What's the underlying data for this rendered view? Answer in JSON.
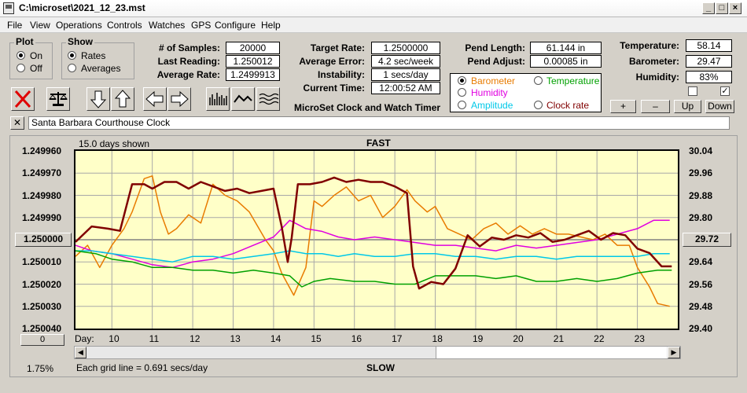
{
  "window": {
    "title": "C:\\microset\\2021_12_23.mst"
  },
  "menu": [
    "File",
    "View",
    "Operations",
    "Controls",
    "Watches",
    "GPS",
    "Configure",
    "Help"
  ],
  "plot_group": {
    "label": "Plot",
    "options": [
      "On",
      "Off"
    ],
    "selected": "On"
  },
  "show_group": {
    "label": "Show",
    "options": [
      "Rates",
      "Averages"
    ],
    "selected": "Rates"
  },
  "stats_left": [
    {
      "label": "# of Samples:",
      "value": "20000"
    },
    {
      "label": "Last Reading:",
      "value": "1.250012"
    },
    {
      "label": "Average Rate:",
      "value": "1.2499913"
    }
  ],
  "stats_mid": [
    {
      "label": "Target Rate:",
      "value": "1.2500000"
    },
    {
      "label": "Average Error:",
      "value": "4.2 sec/week"
    },
    {
      "label": "Instability:",
      "value": "1 secs/day"
    },
    {
      "label": "Current Time:",
      "value": "12:00:52 AM"
    }
  ],
  "app_caption": "MicroSet Clock and Watch Timer",
  "pend": [
    {
      "label": "Pend Length:",
      "value": "61.144 in"
    },
    {
      "label": "Pend Adjust:",
      "value": "0.00085 in"
    }
  ],
  "sensor_options": [
    {
      "label": "Barometer",
      "color": "#e87b00",
      "selected": true
    },
    {
      "label": "Temperature",
      "color": "#00a000",
      "selected": false
    },
    {
      "label": "Humidity",
      "color": "#e000e0",
      "selected": false
    },
    {
      "label": "Amplitude",
      "color": "#00c8e8",
      "selected": false
    },
    {
      "label": "Clock rate",
      "color": "#800000",
      "selected": false
    }
  ],
  "env": [
    {
      "label": "Temperature:",
      "value": "58.14"
    },
    {
      "label": "Barometer:",
      "value": "29.47"
    },
    {
      "label": "Humidity:",
      "value": "83%"
    }
  ],
  "env_checkboxes": [
    false,
    true
  ],
  "scale_buttons": [
    "+",
    "–",
    "Up",
    "Down"
  ],
  "watch_name": "Santa Barbara Courthouse Clock",
  "chart_header": {
    "days_shown": "15.0 days shown",
    "fast": "FAST",
    "slow": "SLOW",
    "grid_note": "Each grid line = 0.691 secs/day",
    "day_label": "Day:",
    "percent": "1.75%",
    "left_spin": "1.250000",
    "right_spin": "29.72",
    "zero_button": "0"
  },
  "chart_data": {
    "type": "line",
    "left_axis": {
      "ticks": [
        "1.249960",
        "1.249970",
        "1.249980",
        "1.249990",
        "1.250000",
        "1.250010",
        "1.250020",
        "1.250030",
        "1.250040"
      ],
      "range": [
        1.24996,
        1.25004
      ],
      "inverted": true
    },
    "right_axis": {
      "ticks": [
        "30.04",
        "29.96",
        "29.88",
        "29.80",
        "29.72",
        "29.64",
        "29.56",
        "29.48",
        "29.40"
      ],
      "range": [
        29.4,
        30.04
      ]
    },
    "x_ticks": [
      "10",
      "11",
      "12",
      "13",
      "14",
      "15",
      "16",
      "17",
      "18",
      "19",
      "20",
      "21",
      "22",
      "23"
    ],
    "x_range": [
      9.1,
      24.0
    ],
    "series": [
      {
        "name": "Clock rate",
        "color": "#800000",
        "axis": "left",
        "x": [
          9.1,
          9.5,
          9.9,
          10.2,
          10.5,
          10.8,
          11.0,
          11.3,
          11.6,
          11.9,
          12.2,
          12.5,
          12.8,
          13.1,
          13.4,
          13.7,
          14.0,
          14.2,
          14.35,
          14.45,
          14.6,
          14.9,
          15.2,
          15.5,
          15.8,
          16.1,
          16.4,
          16.7,
          17.0,
          17.3,
          17.45,
          17.6,
          17.9,
          18.2,
          18.5,
          18.8,
          19.1,
          19.4,
          19.7,
          20.0,
          20.3,
          20.6,
          20.9,
          21.2,
          21.5,
          21.8,
          22.1,
          22.4,
          22.7,
          23.0,
          23.3,
          23.6,
          23.85
        ],
        "y": [
          1.250001,
          1.249994,
          1.249995,
          1.249996,
          1.249975,
          1.249975,
          1.249977,
          1.249974,
          1.249974,
          1.249977,
          1.249974,
          1.249976,
          1.249978,
          1.249977,
          1.249979,
          1.249978,
          1.249977,
          1.249994,
          1.25001,
          1.249999,
          1.249975,
          1.249975,
          1.249974,
          1.249972,
          1.249974,
          1.249973,
          1.249974,
          1.249974,
          1.249976,
          1.249979,
          1.250012,
          1.250022,
          1.250019,
          1.25002,
          1.250013,
          1.249998,
          1.250003,
          1.249999,
          1.25,
          1.249998,
          1.249999,
          1.249997,
          1.250001,
          1.25,
          1.249998,
          1.249996,
          1.25,
          1.249997,
          1.249998,
          1.250004,
          1.250006,
          1.250012,
          1.250012
        ]
      },
      {
        "name": "Barometer",
        "color": "#e87b00",
        "axis": "right",
        "x": [
          9.1,
          9.4,
          9.7,
          10.0,
          10.3,
          10.5,
          10.8,
          11.0,
          11.2,
          11.4,
          11.6,
          11.9,
          12.2,
          12.5,
          12.8,
          13.1,
          13.4,
          13.6,
          13.8,
          14.0,
          14.2,
          14.5,
          14.8,
          15.0,
          15.2,
          15.5,
          15.8,
          16.1,
          16.4,
          16.7,
          17.0,
          17.3,
          17.5,
          17.8,
          18.0,
          18.3,
          18.6,
          18.9,
          19.2,
          19.5,
          19.8,
          20.1,
          20.4,
          20.7,
          21.0,
          21.3,
          21.6,
          21.9,
          22.2,
          22.5,
          22.8,
          23.0,
          23.3,
          23.5,
          23.8
        ],
        "y": [
          29.66,
          29.7,
          29.62,
          29.7,
          29.76,
          29.82,
          29.94,
          29.95,
          29.82,
          29.74,
          29.76,
          29.81,
          29.78,
          29.92,
          29.88,
          29.86,
          29.82,
          29.77,
          29.72,
          29.68,
          29.6,
          29.52,
          29.62,
          29.86,
          29.84,
          29.88,
          29.91,
          29.86,
          29.88,
          29.8,
          29.84,
          29.9,
          29.86,
          29.82,
          29.84,
          29.76,
          29.74,
          29.72,
          29.76,
          29.78,
          29.74,
          29.77,
          29.74,
          29.76,
          29.74,
          29.74,
          29.73,
          29.72,
          29.74,
          29.7,
          29.7,
          29.62,
          29.55,
          29.49,
          29.48
        ]
      },
      {
        "name": "Humidity",
        "color": "#e000e0",
        "axis": "right",
        "x": [
          9.1,
          9.5,
          10.0,
          10.5,
          11.0,
          11.5,
          12.0,
          12.5,
          13.0,
          13.5,
          14.0,
          14.4,
          14.8,
          15.2,
          15.6,
          16.0,
          16.5,
          17.0,
          17.5,
          18.0,
          18.5,
          19.0,
          19.5,
          20.0,
          20.5,
          21.0,
          21.5,
          22.0,
          22.5,
          23.0,
          23.4,
          23.8
        ],
        "y": [
          29.7,
          29.68,
          29.67,
          29.65,
          29.63,
          29.62,
          29.64,
          29.65,
          29.67,
          29.7,
          29.73,
          29.79,
          29.76,
          29.75,
          29.73,
          29.72,
          29.73,
          29.72,
          29.71,
          29.7,
          29.7,
          29.69,
          29.68,
          29.7,
          29.69,
          29.7,
          29.71,
          29.72,
          29.74,
          29.76,
          29.79,
          29.79
        ]
      },
      {
        "name": "Amplitude",
        "color": "#00c8e8",
        "axis": "right",
        "x": [
          9.1,
          9.5,
          10.0,
          10.5,
          11.0,
          11.5,
          12.0,
          12.5,
          13.0,
          13.5,
          14.0,
          14.4,
          14.8,
          15.2,
          15.6,
          16.0,
          16.5,
          17.0,
          17.5,
          18.0,
          18.5,
          19.0,
          19.5,
          20.0,
          20.5,
          21.0,
          21.5,
          22.0,
          22.5,
          23.0,
          23.4,
          23.8
        ],
        "y": [
          29.68,
          29.68,
          29.67,
          29.66,
          29.65,
          29.64,
          29.66,
          29.66,
          29.65,
          29.66,
          29.67,
          29.68,
          29.67,
          29.67,
          29.66,
          29.67,
          29.66,
          29.66,
          29.67,
          29.67,
          29.66,
          29.66,
          29.65,
          29.66,
          29.66,
          29.65,
          29.66,
          29.66,
          29.66,
          29.66,
          29.67,
          29.67
        ]
      },
      {
        "name": "Temperature",
        "color": "#00a000",
        "axis": "right",
        "x": [
          9.1,
          9.6,
          10.0,
          10.5,
          11.0,
          11.5,
          12.0,
          12.5,
          13.0,
          13.5,
          14.0,
          14.4,
          14.7,
          15.0,
          15.4,
          16.0,
          16.5,
          17.0,
          17.5,
          18.0,
          18.5,
          19.0,
          19.5,
          20.0,
          20.5,
          21.0,
          21.5,
          22.0,
          22.5,
          23.0,
          23.5,
          23.85
        ],
        "y": [
          29.68,
          29.67,
          29.65,
          29.64,
          29.62,
          29.62,
          29.61,
          29.61,
          29.6,
          29.61,
          29.6,
          29.59,
          29.55,
          29.57,
          29.58,
          29.57,
          29.57,
          29.56,
          29.56,
          29.59,
          29.59,
          29.59,
          29.58,
          29.59,
          29.57,
          29.57,
          29.58,
          29.57,
          29.58,
          29.6,
          29.61,
          29.61
        ]
      }
    ],
    "grid": true
  }
}
